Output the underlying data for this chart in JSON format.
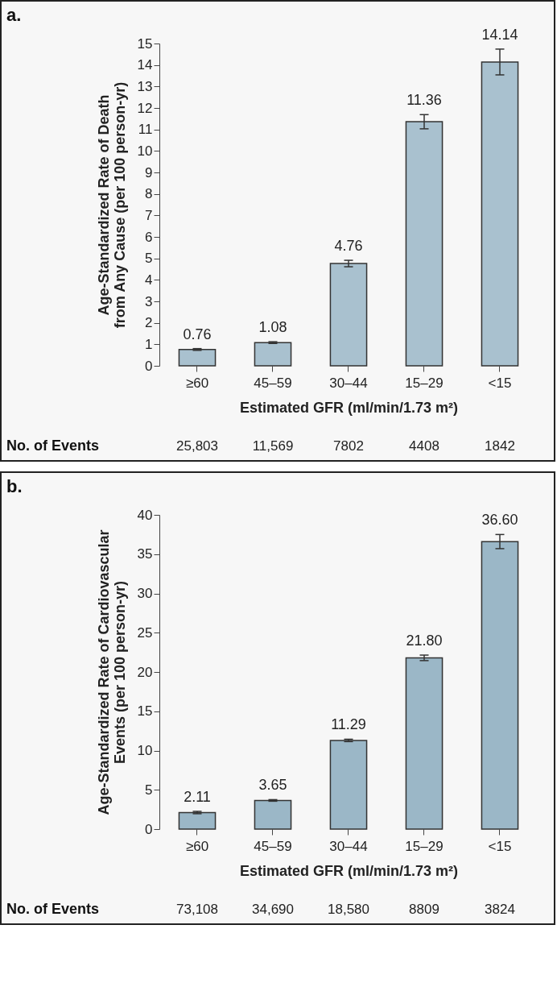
{
  "chart_data": [
    {
      "type": "bar",
      "ylabel": "Age-Standardized Rate of Death\nfrom Any Cause (per 100 person-yr)",
      "xlabel": "Estimated GFR (ml/min/1.73 m²)",
      "categories": [
        "≥60",
        "45–59",
        "30–44",
        "15–29",
        "<15"
      ],
      "values": [
        0.76,
        1.08,
        4.76,
        11.36,
        14.14
      ],
      "color": "#a9c1cf",
      "errors": [
        0.04,
        0.04,
        0.15,
        0.33,
        0.6
      ],
      "data_labels": true,
      "ylim": [
        0,
        15
      ],
      "yticks": [
        0,
        1,
        2,
        3,
        4,
        5,
        6,
        7,
        8,
        9,
        10,
        11,
        12,
        13,
        14,
        15
      ],
      "grid": false,
      "annotations": [
        "a.",
        "No. of Events",
        "25,803",
        "11,569",
        "7802",
        "4408",
        "1842"
      ]
    },
    {
      "type": "bar",
      "ylabel": "Age-Standardized Rate of Cardiovascular\nEvents (per 100 person-yr)",
      "xlabel": "Estimated GFR (ml/min/1.73 m²)",
      "categories": [
        "≥60",
        "45–59",
        "30–44",
        "15–29",
        "<15"
      ],
      "values": [
        2.11,
        3.65,
        11.29,
        21.8,
        36.6
      ],
      "value_labels": [
        "2.11",
        "3.65",
        "11.29",
        "21.80",
        "36.60"
      ],
      "color": "#9bb7c7",
      "errors": [
        0.15,
        0.1,
        0.15,
        0.35,
        0.9
      ],
      "ylim": [
        0,
        40
      ],
      "yticks": [
        0,
        5,
        10,
        15,
        20,
        25,
        30,
        35,
        40
      ],
      "grid": false,
      "annotations": [
        "b.",
        "No. of Events",
        "73,108",
        "34,690",
        "18,580",
        "8809",
        "3824"
      ]
    }
  ]
}
